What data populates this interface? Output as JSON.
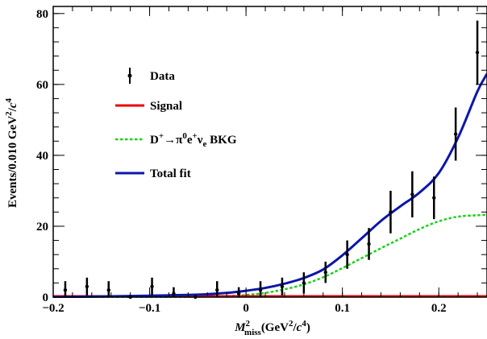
{
  "chart_data": {
    "type": "scatter",
    "xlim": [
      -0.2,
      0.25
    ],
    "ylim": [
      0,
      82
    ],
    "x_ticks": [
      -0.2,
      -0.1,
      0,
      0.1,
      0.2
    ],
    "x_tick_labels": [
      "−0.2",
      "−0.1",
      "0",
      "0.1",
      "0.2"
    ],
    "y_ticks": [
      0,
      20,
      40,
      60,
      80
    ],
    "y_tick_labels": [
      "0",
      "20",
      "40",
      "60",
      "80"
    ],
    "xlabel": "M²miss(GeV²/c⁴)",
    "ylabel": "Events/0.010 GeV²/c⁴",
    "grid": false,
    "legend_position": "upper-left",
    "series": [
      {
        "name": "Data",
        "kind": "points-with-errors",
        "color": "#000000",
        "x": [
          -0.1875,
          -0.165,
          -0.1425,
          -0.12,
          -0.0975,
          -0.075,
          -0.0525,
          -0.03,
          -0.0075,
          0.015,
          0.0375,
          0.06,
          0.0825,
          0.105,
          0.1275,
          0.15,
          0.1725,
          0.195,
          0.2175,
          0.24
        ],
        "y": [
          2,
          3,
          2,
          0,
          3,
          1,
          0,
          2,
          1,
          2,
          3,
          4,
          7,
          12,
          15,
          24,
          29,
          28,
          46,
          69
        ],
        "yerr": [
          2.5,
          2.5,
          2.5,
          0.6,
          2.5,
          1.8,
          0.6,
          2.5,
          1.8,
          2.5,
          2.5,
          3,
          3,
          4,
          4.5,
          6,
          6.5,
          6,
          7.5,
          9
        ]
      },
      {
        "name": "Signal",
        "kind": "line",
        "color": "#e8000b",
        "x": [
          -0.2,
          0.25
        ],
        "y": [
          0,
          0
        ]
      },
      {
        "name": "D⁺→π⁰e⁺νₑ BKG",
        "kind": "dashed-line",
        "color": "#19d219",
        "x": [
          -0.2,
          -0.1,
          -0.05,
          -0.02,
          0,
          0.02,
          0.04,
          0.06,
          0.08,
          0.1,
          0.12,
          0.14,
          0.16,
          0.18,
          0.2,
          0.22,
          0.24,
          0.25
        ],
        "y": [
          0,
          0,
          0.1,
          0.3,
          0.6,
          1.2,
          2.2,
          3.6,
          5.6,
          8.2,
          11,
          13.8,
          16.5,
          19.2,
          21.4,
          22.7,
          23.1,
          23.2
        ]
      },
      {
        "name": "Total fit",
        "kind": "line",
        "color": "#0c17a8",
        "x": [
          -0.2,
          -0.15,
          -0.1,
          -0.05,
          -0.02,
          0,
          0.02,
          0.04,
          0.06,
          0.08,
          0.1,
          0.12,
          0.14,
          0.16,
          0.18,
          0.2,
          0.22,
          0.24,
          0.25
        ],
        "y": [
          0,
          0.2,
          0.4,
          0.7,
          1.2,
          1.8,
          2.6,
          3.8,
          5.4,
          7.8,
          11.8,
          16.6,
          21.5,
          25.6,
          29.5,
          35,
          45,
          58,
          63
        ]
      }
    ],
    "legend_entries": [
      {
        "label": "Data",
        "style": "marker",
        "color": "#000000"
      },
      {
        "label": "Signal",
        "style": "solid",
        "color": "#e8000b"
      },
      {
        "label": "D⁺→π⁰e⁺νₑ BKG",
        "style": "dashed",
        "color": "#19d219"
      },
      {
        "label": "Total fit",
        "style": "solid",
        "color": "#0c17a8"
      }
    ]
  }
}
